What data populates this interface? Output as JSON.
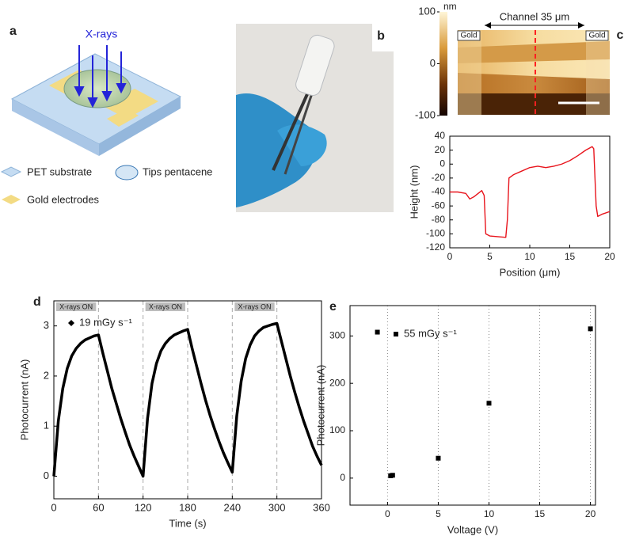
{
  "diagram": {
    "label": "a",
    "beam": "X-rays",
    "legend": [
      "PET substrate",
      "Tips pentacene",
      "Gold electrodes"
    ]
  },
  "photo": {
    "label": "b"
  },
  "afm": {
    "label": "c",
    "channel": "Channel 35 μm",
    "electrodes": [
      "Gold",
      "Gold"
    ],
    "colorbar": {
      "unit": "nm",
      "ticks": [
        100,
        0,
        -100
      ]
    }
  },
  "chart_data": [
    {
      "type": "line",
      "xlabel": "Position (μm)",
      "ylabel": "Height (nm)",
      "xlim": [
        0,
        20
      ],
      "xticks": [
        0,
        5,
        10,
        15,
        20
      ],
      "ylim": [
        -120,
        40
      ],
      "yticks": [
        -120,
        -100,
        -80,
        -60,
        -40,
        -20,
        0,
        20,
        40
      ],
      "color": "#e8141c",
      "x": [
        0,
        1,
        2,
        2.5,
        3,
        4,
        4.3,
        4.5,
        5,
        6,
        7,
        7.2,
        7.4,
        8,
        9,
        10,
        11,
        12,
        13,
        14,
        15,
        16,
        17,
        17.8,
        18,
        18.3,
        18.5,
        19,
        20
      ],
      "values": [
        -40,
        -40,
        -42,
        -50,
        -47,
        -38,
        -45,
        -100,
        -103,
        -104,
        -105,
        -80,
        -20,
        -15,
        -10,
        -5,
        -3,
        -5,
        -3,
        0,
        5,
        12,
        20,
        25,
        22,
        -60,
        -75,
        -72,
        -68
      ]
    },
    {
      "type": "line",
      "panel": "d",
      "xlabel": "Time (s)",
      "ylabel": "Photocurrent (nA)",
      "xlim": [
        0,
        360
      ],
      "xticks": [
        0,
        60,
        120,
        180,
        240,
        300,
        360
      ],
      "ylim": [
        -0.45,
        3.5
      ],
      "yticks": [
        0,
        1,
        2,
        3
      ],
      "color": "#000000",
      "legend": "19 mGy s⁻¹",
      "marker": "diamond",
      "shaded": {
        "label": "X-rays ON",
        "intervals": [
          [
            0,
            60
          ],
          [
            120,
            180
          ],
          [
            240,
            300
          ]
        ]
      },
      "x": [
        0,
        6,
        12,
        18,
        24,
        30,
        36,
        42,
        48,
        54,
        60,
        66,
        72,
        78,
        84,
        90,
        96,
        102,
        108,
        114,
        120,
        126,
        132,
        138,
        144,
        150,
        156,
        162,
        168,
        174,
        180,
        186,
        192,
        198,
        204,
        210,
        216,
        222,
        228,
        234,
        240,
        246,
        252,
        258,
        264,
        270,
        276,
        282,
        288,
        294,
        300,
        306,
        312,
        318,
        324,
        330,
        336,
        342,
        348,
        354,
        360
      ],
      "values": [
        0,
        1.1,
        1.75,
        2.15,
        2.4,
        2.55,
        2.65,
        2.72,
        2.76,
        2.8,
        2.82,
        2.45,
        2.1,
        1.75,
        1.45,
        1.15,
        0.88,
        0.62,
        0.4,
        0.2,
        0,
        1.15,
        1.85,
        2.25,
        2.5,
        2.65,
        2.75,
        2.82,
        2.86,
        2.9,
        2.93,
        2.55,
        2.2,
        1.85,
        1.52,
        1.22,
        0.95,
        0.7,
        0.47,
        0.27,
        0.08,
        1.2,
        1.9,
        2.35,
        2.62,
        2.8,
        2.9,
        2.97,
        3.0,
        3.03,
        3.05,
        2.7,
        2.35,
        2.0,
        1.68,
        1.38,
        1.1,
        0.85,
        0.6,
        0.4,
        0.22
      ]
    },
    {
      "type": "scatter",
      "panel": "e",
      "xlabel": "Voltage (V)",
      "ylabel": "Photocurrent (nA)",
      "xlim": [
        -3.7,
        20.5
      ],
      "xticks": [
        0,
        5,
        10,
        15,
        20
      ],
      "ylim": [
        -57,
        364
      ],
      "yticks": [
        0,
        100,
        200,
        300
      ],
      "grid": "x",
      "color": "#000000",
      "legend": "55 mGy s⁻¹",
      "marker": "square",
      "x": [
        -1,
        0.3,
        0.5,
        5,
        10,
        20
      ],
      "values": [
        308,
        5,
        6,
        42,
        158,
        315
      ]
    }
  ]
}
